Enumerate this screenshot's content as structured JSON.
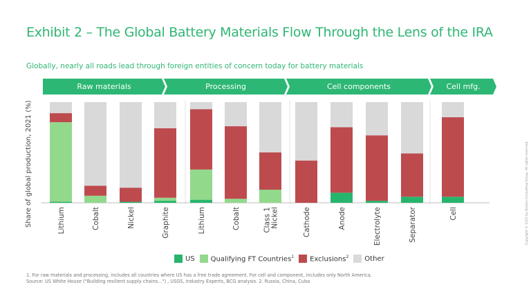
{
  "header": {
    "title": "Exhibit 2 – The Global Battery Materials Flow Through the Lens of the IRA",
    "subtitle": "Globally, nearly all roads lead through foreign entities of concern today for battery materials"
  },
  "stages": [
    {
      "label": "Raw materials"
    },
    {
      "label": "Processing"
    },
    {
      "label": "Cell components"
    },
    {
      "label": "Cell mfg."
    }
  ],
  "legend": {
    "us": "US",
    "qft": "Qualifying FT Countries",
    "qft_sup": "1",
    "excl": "Exclusions",
    "excl_sup": "2",
    "other": "Other"
  },
  "footnotes": {
    "line1": "1. For raw materials and processing, includes all countries where US has a free trade agreement. For cell and component, includes only North America.",
    "line2": "Source: US White House (\"Building resilient supply chains...\") , USGS, Industry Experts, BCG analysis. 2. Russia, China, Cuba"
  },
  "copyright": "Copyright © 2022 by Boston Consulting Group. All rights reserved.",
  "chart_data": {
    "type": "bar",
    "stacked": true,
    "title": "Exhibit 2 – The Global Battery Materials Flow Through the Lens of the IRA",
    "xlabel": "",
    "ylabel": "Share of global production, 2021 (%)",
    "ylim": [
      0,
      100
    ],
    "grid": false,
    "legend_position": "bottom",
    "categories": [
      "Lithium",
      "Cobalt",
      "Nickel",
      "Graphite",
      "Lithium",
      "Cobalt",
      "Class 1 Nickel",
      "Cathode",
      "Anode",
      "Electrolyte",
      "Separator",
      "Cell"
    ],
    "groups": [
      {
        "name": "Raw materials",
        "categories": [
          0,
          1,
          2,
          3
        ]
      },
      {
        "name": "Processing",
        "categories": [
          4,
          5,
          6
        ]
      },
      {
        "name": "Cell components",
        "categories": [
          7,
          8,
          9,
          10
        ]
      },
      {
        "name": "Cell mfg.",
        "categories": [
          11
        ]
      }
    ],
    "series": [
      {
        "name": "US",
        "color": "#27b56d",
        "values": [
          1,
          0,
          1,
          2,
          3,
          0,
          0,
          0,
          10,
          2,
          6,
          6
        ]
      },
      {
        "name": "Qualifying FT Countries",
        "color": "#92d98c",
        "values": [
          79,
          7,
          0,
          3,
          30,
          4,
          13,
          0,
          0,
          0,
          0,
          0
        ]
      },
      {
        "name": "Exclusions",
        "color": "#bd4b4e",
        "values": [
          9,
          10,
          14,
          69,
          60,
          72,
          37,
          42,
          65,
          65,
          43,
          79
        ]
      },
      {
        "name": "Other",
        "color": "#d9d9d9",
        "values": [
          11,
          83,
          85,
          26,
          7,
          24,
          50,
          58,
          25,
          33,
          51,
          15
        ]
      }
    ]
  }
}
